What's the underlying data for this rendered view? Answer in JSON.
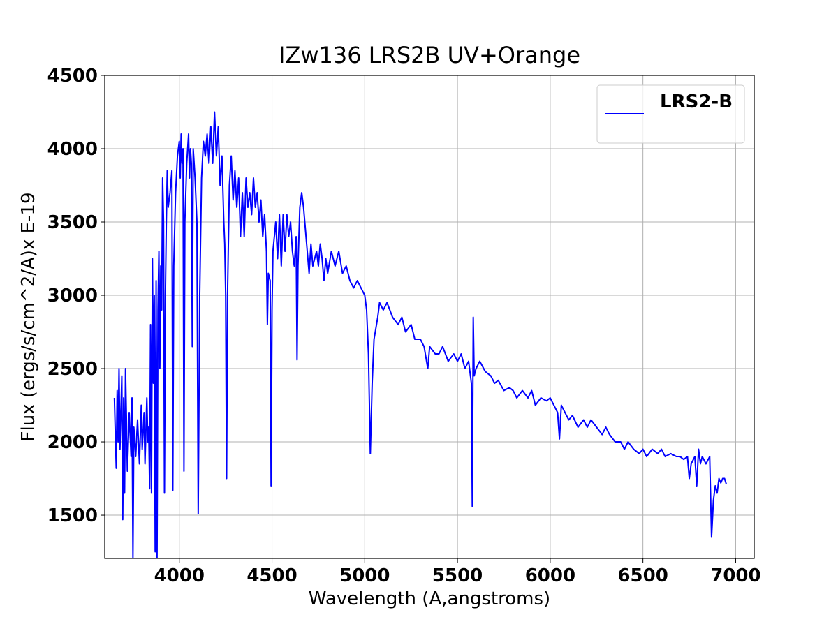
{
  "chart_data": {
    "type": "line",
    "title": "IZw136 LRS2B UV+Orange",
    "x_label": "Wavelength (A,angstroms)",
    "y_label": "Flux (ergs/s/cm^2/A)x E-19",
    "x": [
      3650,
      3660,
      3665,
      3670,
      3675,
      3680,
      3690,
      3695,
      3700,
      3705,
      3710,
      3720,
      3730,
      3740,
      3745,
      3750,
      3755,
      3765,
      3775,
      3785,
      3795,
      3800,
      3810,
      3815,
      3825,
      3830,
      3835,
      3840,
      3845,
      3850,
      3855,
      3860,
      3865,
      3870,
      3875,
      3880,
      3885,
      3890,
      3895,
      3900,
      3905,
      3910,
      3915,
      3920,
      3925,
      3930,
      3935,
      3940,
      3950,
      3960,
      3965,
      3970,
      3980,
      3990,
      4000,
      4005,
      4010,
      4015,
      4020,
      4025,
      4030,
      4040,
      4050,
      4055,
      4060,
      4065,
      4070,
      4075,
      4085,
      4095,
      4102,
      4110,
      4120,
      4130,
      4140,
      4150,
      4160,
      4170,
      4180,
      4190,
      4200,
      4210,
      4220,
      4230,
      4240,
      4245,
      4250,
      4255,
      4260,
      4270,
      4280,
      4290,
      4300,
      4310,
      4320,
      4330,
      4340,
      4350,
      4360,
      4370,
      4380,
      4390,
      4400,
      4410,
      4420,
      4430,
      4440,
      4450,
      4460,
      4470,
      4475,
      4480,
      4490,
      4495,
      4500,
      4505,
      4520,
      4530,
      4540,
      4550,
      4560,
      4570,
      4580,
      4590,
      4600,
      4610,
      4620,
      4630,
      4635,
      4640,
      4650,
      4660,
      4670,
      4680,
      4690,
      4700,
      4710,
      4720,
      4730,
      4740,
      4750,
      4760,
      4770,
      4780,
      4790,
      4800,
      4820,
      4840,
      4860,
      4880,
      4900,
      4920,
      4940,
      4960,
      4980,
      5000,
      5010,
      5020,
      5030,
      5040,
      5050,
      5070,
      5080,
      5100,
      5120,
      5150,
      5180,
      5200,
      5220,
      5250,
      5270,
      5300,
      5320,
      5340,
      5350,
      5380,
      5400,
      5420,
      5450,
      5480,
      5500,
      5520,
      5540,
      5560,
      5575,
      5580,
      5585,
      5590,
      5600,
      5620,
      5650,
      5680,
      5700,
      5720,
      5750,
      5780,
      5800,
      5820,
      5850,
      5880,
      5900,
      5920,
      5950,
      5980,
      6000,
      6020,
      6040,
      6050,
      6060,
      6080,
      6100,
      6120,
      6150,
      6180,
      6200,
      6220,
      6250,
      6280,
      6300,
      6320,
      6350,
      6380,
      6400,
      6420,
      6450,
      6480,
      6500,
      6520,
      6550,
      6580,
      6600,
      6620,
      6650,
      6680,
      6700,
      6720,
      6740,
      6750,
      6760,
      6780,
      6790,
      6800,
      6810,
      6820,
      6840,
      6860,
      6870,
      6880,
      6890,
      6900,
      6910,
      6920,
      6930,
      6940,
      6950
    ],
    "series": [
      {
        "name": "LRS2-B",
        "color": "#0000ff",
        "values": [
          2300,
          1820,
          2350,
          2000,
          2500,
          1950,
          2450,
          1470,
          2300,
          1650,
          2500,
          1800,
          2200,
          1900,
          2300,
          1210,
          2100,
          1900,
          2150,
          1850,
          2250,
          1950,
          2200,
          1850,
          2300,
          2000,
          2100,
          1680,
          2800,
          1650,
          3250,
          2400,
          3000,
          1250,
          3100,
          1210,
          2900,
          3300,
          2500,
          3200,
          2900,
          3800,
          3500,
          1650,
          3000,
          3500,
          3850,
          3600,
          3700,
          3850,
          1670,
          3200,
          3700,
          3950,
          4050,
          3800,
          4100,
          3900,
          4000,
          1800,
          3500,
          3900,
          4100,
          3800,
          4000,
          3900,
          2650,
          4000,
          3800,
          3500,
          1510,
          3000,
          3800,
          4050,
          3950,
          4100,
          3900,
          4150,
          3900,
          4250,
          3950,
          4150,
          3750,
          3950,
          3500,
          3350,
          3000,
          1750,
          3000,
          3750,
          3950,
          3650,
          3850,
          3600,
          3800,
          3400,
          3700,
          3400,
          3800,
          3600,
          3700,
          3550,
          3800,
          3600,
          3700,
          3500,
          3650,
          3400,
          3550,
          3300,
          2800,
          3150,
          3100,
          1700,
          2900,
          3300,
          3500,
          3250,
          3550,
          3200,
          3550,
          3300,
          3550,
          3400,
          3500,
          3300,
          3200,
          3400,
          2560,
          3200,
          3600,
          3700,
          3600,
          3450,
          3300,
          3150,
          3350,
          3200,
          3250,
          3300,
          3200,
          3350,
          3250,
          3100,
          3250,
          3150,
          3300,
          3200,
          3300,
          3150,
          3200,
          3100,
          3050,
          3100,
          3050,
          3000,
          2900,
          2600,
          1920,
          2400,
          2700,
          2850,
          2950,
          2900,
          2950,
          2850,
          2800,
          2850,
          2750,
          2800,
          2700,
          2700,
          2650,
          2500,
          2650,
          2600,
          2600,
          2650,
          2550,
          2600,
          2550,
          2600,
          2500,
          2550,
          2400,
          1560,
          2850,
          2450,
          2500,
          2550,
          2480,
          2450,
          2400,
          2420,
          2350,
          2370,
          2350,
          2300,
          2350,
          2300,
          2350,
          2250,
          2300,
          2280,
          2300,
          2250,
          2200,
          2020,
          2250,
          2200,
          2150,
          2180,
          2100,
          2150,
          2100,
          2150,
          2100,
          2050,
          2100,
          2050,
          2000,
          2000,
          1950,
          2000,
          1950,
          1920,
          1950,
          1900,
          1950,
          1920,
          1950,
          1900,
          1920,
          1900,
          1900,
          1880,
          1900,
          1750,
          1850,
          1900,
          1700,
          1950,
          1850,
          1900,
          1850,
          1900,
          1350,
          1600,
          1700,
          1650,
          1750,
          1720,
          1750,
          1750,
          1710
        ]
      }
    ],
    "xlim": [
      3598,
      7100
    ],
    "xticks": [
      4000,
      4500,
      5000,
      5500,
      6000,
      6500,
      7000
    ],
    "ylim": [
      1205,
      4500
    ],
    "yticks": [
      1500,
      2000,
      2500,
      3000,
      3500,
      4000,
      4500
    ],
    "grid": true,
    "legend": "upper right"
  }
}
